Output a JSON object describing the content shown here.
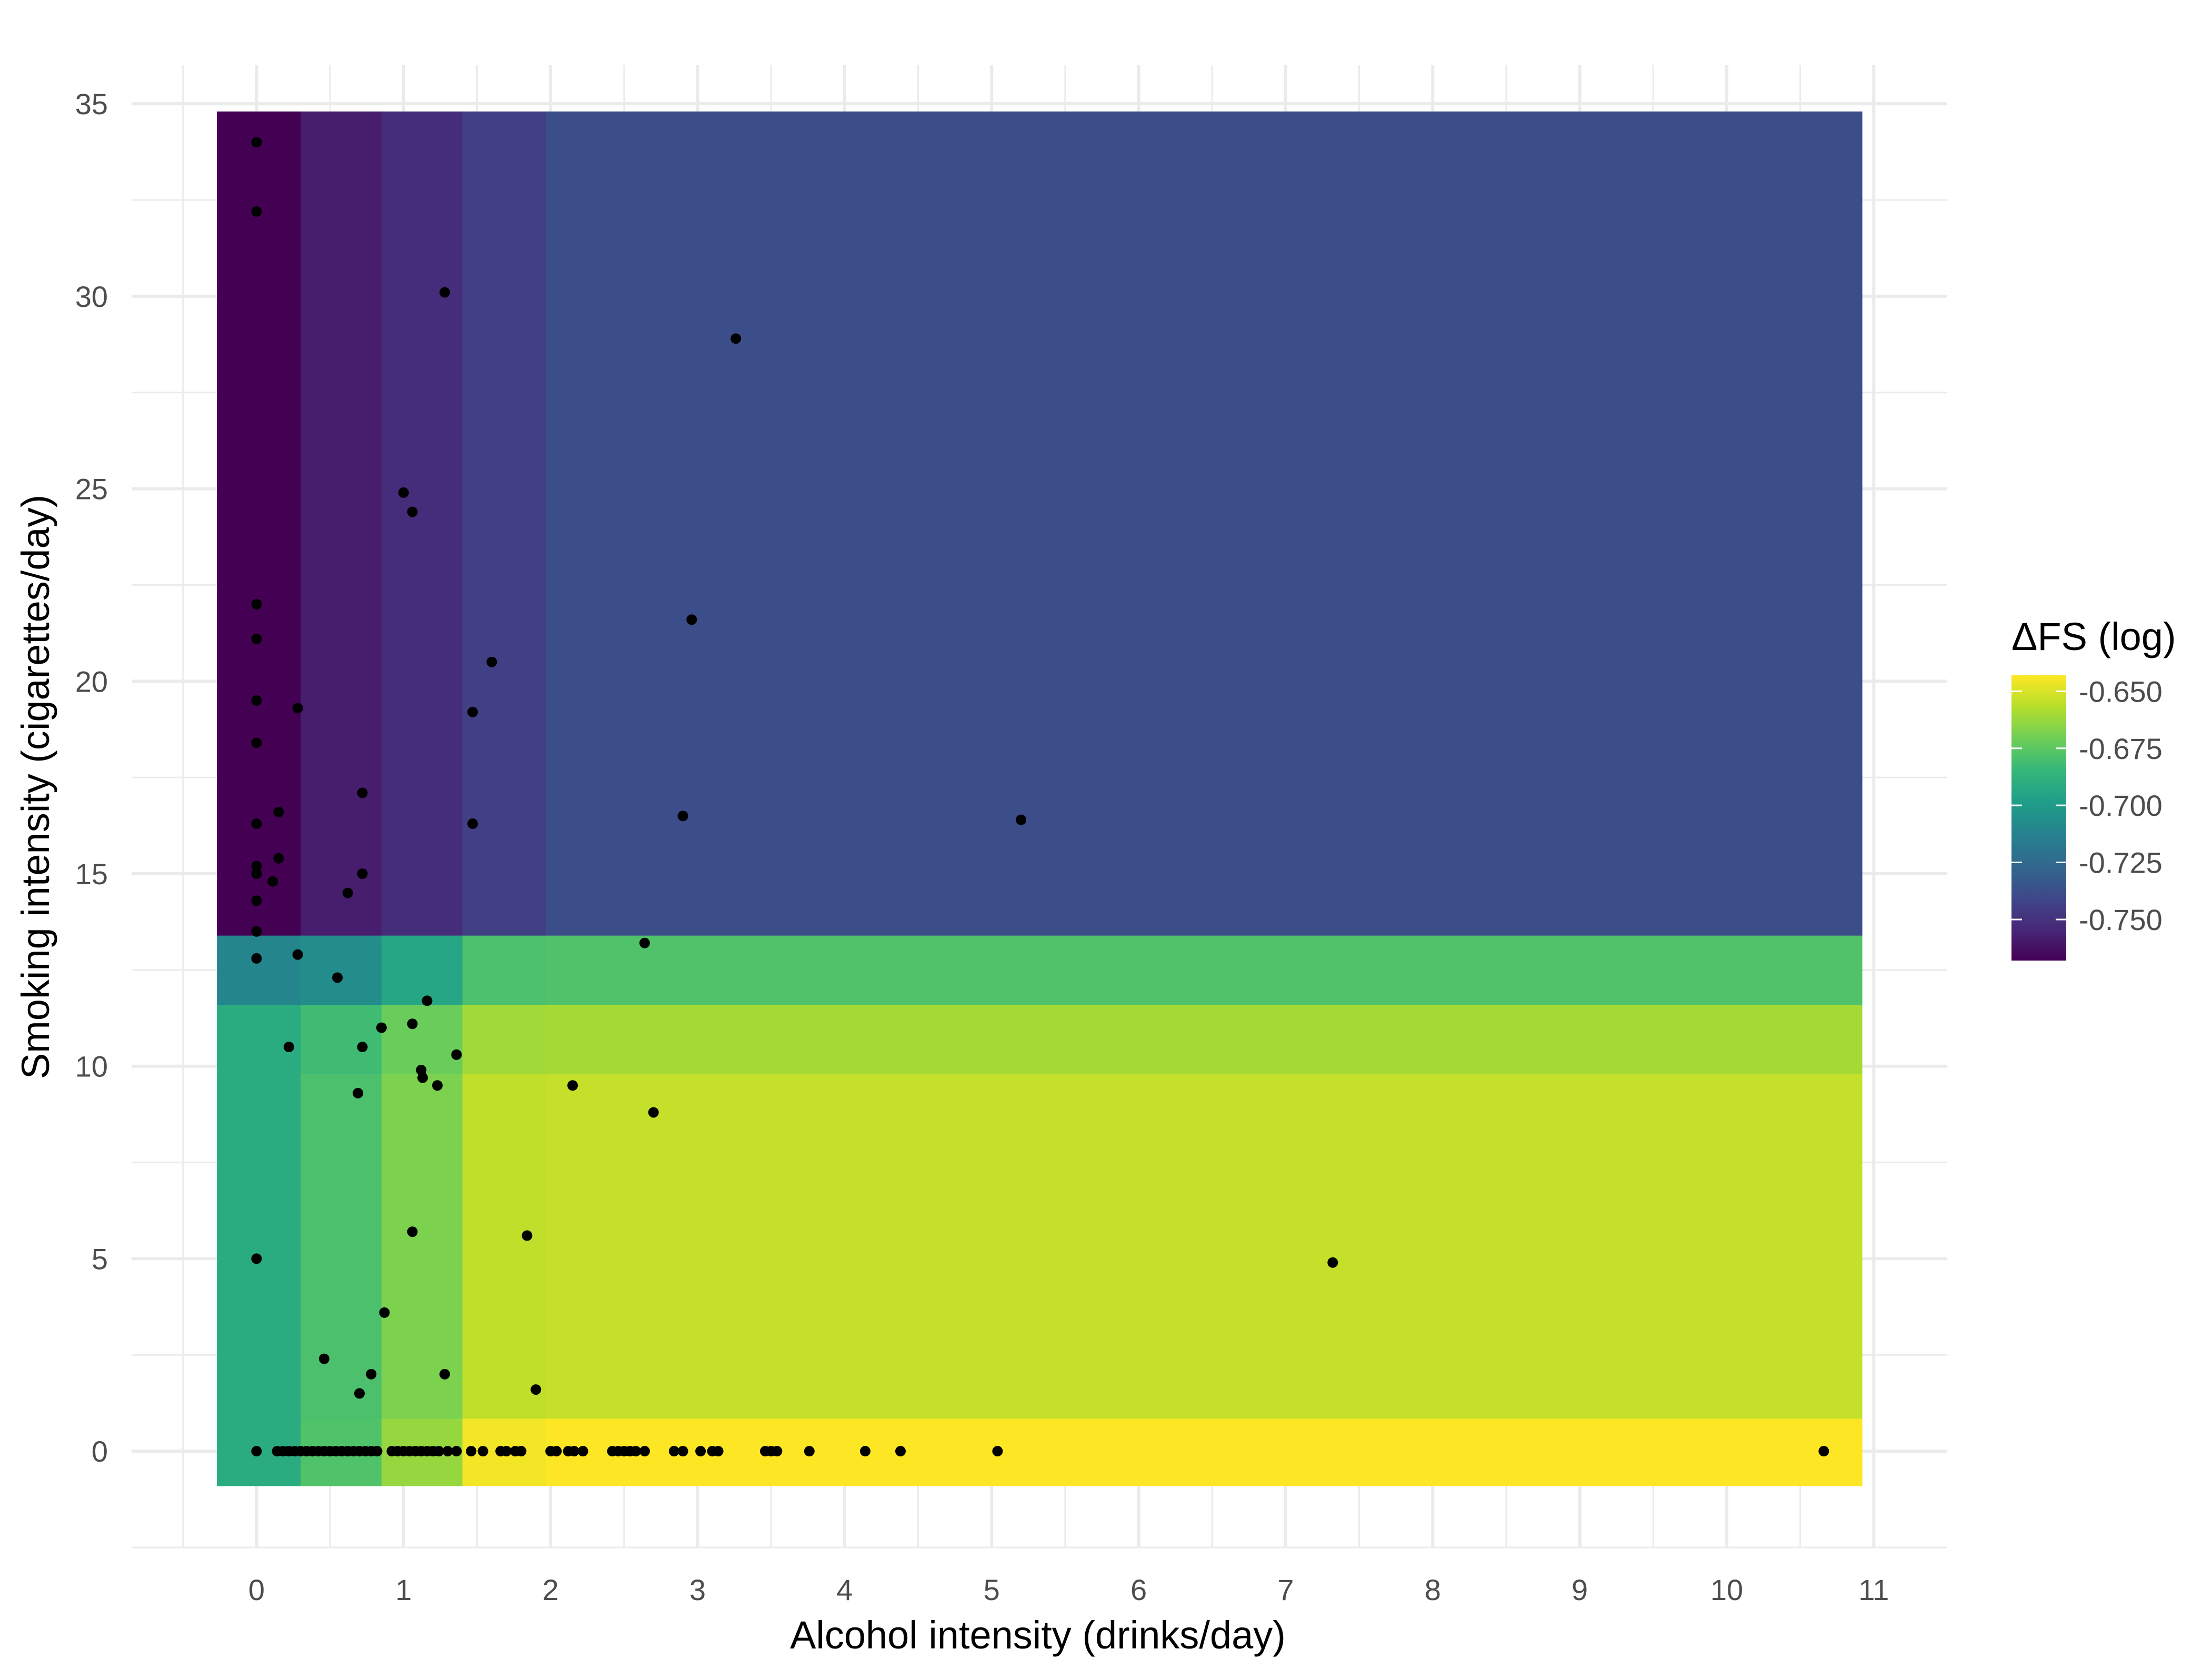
{
  "chart_data": {
    "type": "heatmap",
    "xlabel": "Alcohol intensity (drinks/day)",
    "ylabel": "Smoking intensity (cigarettes/day)",
    "xlim": [
      -0.85,
      11.5
    ],
    "ylim": [
      -2.5,
      36
    ],
    "x_ticks": [
      0,
      1,
      2,
      3,
      4,
      5,
      6,
      7,
      8,
      9,
      10,
      11
    ],
    "y_ticks": [
      0,
      5,
      10,
      15,
      20,
      25,
      30,
      35
    ],
    "grid": true,
    "legend": {
      "title": "ΔFS (log)",
      "position": "right",
      "ticks": [
        -0.65,
        -0.675,
        -0.7,
        -0.725,
        -0.75
      ],
      "tick_labels": [
        "-0.650",
        "-0.675",
        "-0.700",
        "-0.725",
        "-0.750"
      ],
      "range": [
        -0.768,
        -0.643
      ]
    },
    "x_bins": [
      -0.27,
      0.3,
      0.85,
      1.4,
      1.97,
      3.1,
      10.92
    ],
    "y_bins": [
      -0.9,
      0.85,
      9.8,
      11.6,
      13.4,
      34.8
    ],
    "tiles": [
      [
        -0.691,
        -0.691,
        -0.691,
        -0.711,
        -0.768,
        -0.768
      ],
      [
        -0.678,
        -0.679,
        -0.682,
        -0.707,
        -0.758,
        -0.758
      ],
      [
        -0.663,
        -0.668,
        -0.672,
        -0.694,
        -0.752,
        -0.752
      ],
      [
        -0.645,
        -0.655,
        -0.661,
        -0.679,
        -0.744,
        -0.744
      ],
      [
        -0.643,
        -0.654,
        -0.66,
        -0.678,
        -0.738,
        -0.737
      ]
    ],
    "points": [
      [
        0,
        34
      ],
      [
        0,
        32.2
      ],
      [
        1.28,
        30.1
      ],
      [
        3.26,
        28.9
      ],
      [
        1.0,
        24.9
      ],
      [
        1.06,
        24.4
      ],
      [
        0,
        22
      ],
      [
        0,
        21.1
      ],
      [
        2.96,
        21.6
      ],
      [
        1.6,
        20.5
      ],
      [
        0,
        19.5
      ],
      [
        0.28,
        19.3
      ],
      [
        1.47,
        19.2
      ],
      [
        0,
        18.4
      ],
      [
        0.72,
        17.1
      ],
      [
        0.15,
        16.6
      ],
      [
        2.9,
        16.5
      ],
      [
        0,
        16.3
      ],
      [
        1.47,
        16.3
      ],
      [
        5.2,
        16.4
      ],
      [
        0.15,
        15.4
      ],
      [
        0,
        15.2
      ],
      [
        0,
        15.0
      ],
      [
        0.72,
        15.0
      ],
      [
        0.11,
        14.8
      ],
      [
        0.62,
        14.5
      ],
      [
        0,
        14.3
      ],
      [
        0,
        13.5
      ],
      [
        2.64,
        13.2
      ],
      [
        0.28,
        12.9
      ],
      [
        0,
        12.8
      ],
      [
        0.55,
        12.3
      ],
      [
        1.16,
        11.7
      ],
      [
        0.85,
        11.0
      ],
      [
        1.06,
        11.1
      ],
      [
        0.22,
        10.5
      ],
      [
        0.72,
        10.5
      ],
      [
        1.36,
        10.3
      ],
      [
        1.12,
        9.9
      ],
      [
        1.13,
        9.7
      ],
      [
        1.23,
        9.5
      ],
      [
        2.15,
        9.5
      ],
      [
        0.69,
        9.3
      ],
      [
        2.7,
        8.8
      ],
      [
        1.06,
        5.7
      ],
      [
        1.84,
        5.6
      ],
      [
        0,
        5.0
      ],
      [
        7.32,
        4.9
      ],
      [
        0.87,
        3.6
      ],
      [
        0.46,
        2.4
      ],
      [
        0.78,
        2.0
      ],
      [
        1.28,
        2.0
      ],
      [
        1.9,
        1.6
      ],
      [
        0.7,
        1.5
      ],
      [
        0,
        0
      ],
      [
        0.14,
        0
      ],
      [
        0.18,
        0
      ],
      [
        0.22,
        0
      ],
      [
        0.26,
        0
      ],
      [
        0.3,
        0
      ],
      [
        0.34,
        0
      ],
      [
        0.38,
        0
      ],
      [
        0.42,
        0
      ],
      [
        0.46,
        0
      ],
      [
        0.5,
        0
      ],
      [
        0.54,
        0
      ],
      [
        0.58,
        0
      ],
      [
        0.62,
        0
      ],
      [
        0.66,
        0
      ],
      [
        0.7,
        0
      ],
      [
        0.74,
        0
      ],
      [
        0.78,
        0
      ],
      [
        0.82,
        0
      ],
      [
        0.92,
        0
      ],
      [
        0.96,
        0
      ],
      [
        1.0,
        0
      ],
      [
        1.04,
        0
      ],
      [
        1.08,
        0
      ],
      [
        1.12,
        0
      ],
      [
        1.16,
        0
      ],
      [
        1.2,
        0
      ],
      [
        1.24,
        0
      ],
      [
        1.3,
        0
      ],
      [
        1.36,
        0
      ],
      [
        1.46,
        0
      ],
      [
        1.54,
        0
      ],
      [
        1.66,
        0
      ],
      [
        1.7,
        0
      ],
      [
        1.76,
        0
      ],
      [
        1.8,
        0
      ],
      [
        2.0,
        0
      ],
      [
        2.04,
        0
      ],
      [
        2.12,
        0
      ],
      [
        2.16,
        0
      ],
      [
        2.22,
        0
      ],
      [
        2.42,
        0
      ],
      [
        2.46,
        0
      ],
      [
        2.5,
        0
      ],
      [
        2.54,
        0
      ],
      [
        2.58,
        0
      ],
      [
        2.64,
        0
      ],
      [
        2.84,
        0
      ],
      [
        2.9,
        0
      ],
      [
        3.02,
        0
      ],
      [
        3.1,
        0
      ],
      [
        3.14,
        0
      ],
      [
        3.46,
        0
      ],
      [
        3.5,
        0
      ],
      [
        3.54,
        0
      ],
      [
        3.76,
        0
      ],
      [
        4.14,
        0
      ],
      [
        4.38,
        0
      ],
      [
        5.04,
        0
      ],
      [
        10.66,
        0
      ]
    ]
  }
}
